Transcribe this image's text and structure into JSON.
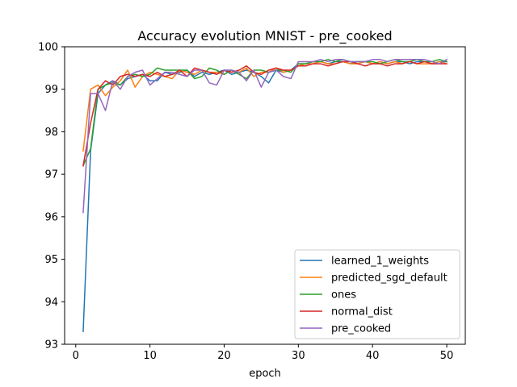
{
  "chart_data": {
    "type": "line",
    "title": "Accuracy evolution MNIST - pre_cooked",
    "xlabel": "epoch",
    "ylabel": "",
    "xlim": [
      -1.5,
      52.5
    ],
    "ylim": [
      93,
      100
    ],
    "xticks": [
      0,
      10,
      20,
      30,
      40,
      50
    ],
    "yticks": [
      93,
      94,
      95,
      96,
      97,
      98,
      99,
      100
    ],
    "grid": false,
    "legend_position": "lower-right",
    "series": [
      {
        "name": "learned_1_weights",
        "color": "#1f77b4",
        "x": [
          1,
          2,
          3,
          4,
          5,
          6,
          7,
          8,
          9,
          10,
          11,
          12,
          13,
          14,
          15,
          16,
          17,
          18,
          19,
          20,
          21,
          22,
          23,
          24,
          25,
          26,
          27,
          28,
          29,
          30,
          31,
          32,
          33,
          34,
          35,
          36,
          37,
          38,
          39,
          40,
          41,
          42,
          43,
          44,
          45,
          46,
          47,
          48,
          49,
          50
        ],
        "values": [
          93.3,
          97.55,
          98.9,
          99.1,
          99.2,
          99.1,
          99.25,
          99.3,
          99.35,
          99.2,
          99.2,
          99.4,
          99.35,
          99.4,
          99.45,
          99.3,
          99.4,
          99.35,
          99.4,
          99.45,
          99.35,
          99.4,
          99.45,
          99.4,
          99.3,
          99.15,
          99.45,
          99.4,
          99.45,
          99.6,
          99.6,
          99.65,
          99.65,
          99.6,
          99.65,
          99.65,
          99.6,
          99.65,
          99.65,
          99.6,
          99.65,
          99.6,
          99.65,
          99.65,
          99.6,
          99.65,
          99.65,
          99.6,
          99.65,
          99.65
        ]
      },
      {
        "name": "predicted_sgd_default",
        "color": "#ff7f0e",
        "x": [
          1,
          2,
          3,
          4,
          5,
          6,
          7,
          8,
          9,
          10,
          11,
          12,
          13,
          14,
          15,
          16,
          17,
          18,
          19,
          20,
          21,
          22,
          23,
          24,
          25,
          26,
          27,
          28,
          29,
          30,
          31,
          32,
          33,
          34,
          35,
          36,
          37,
          38,
          39,
          40,
          41,
          42,
          43,
          44,
          45,
          46,
          47,
          48,
          49,
          50
        ],
        "values": [
          97.55,
          99.0,
          99.1,
          98.85,
          99.05,
          99.2,
          99.45,
          99.05,
          99.3,
          99.4,
          99.35,
          99.3,
          99.25,
          99.45,
          99.4,
          99.35,
          99.45,
          99.4,
          99.4,
          99.35,
          99.45,
          99.4,
          99.5,
          99.3,
          99.4,
          99.4,
          99.5,
          99.4,
          99.45,
          99.55,
          99.6,
          99.6,
          99.65,
          99.6,
          99.6,
          99.65,
          99.6,
          99.6,
          99.65,
          99.6,
          99.65,
          99.6,
          99.65,
          99.6,
          99.65,
          99.6,
          99.6,
          99.6,
          99.65,
          99.6
        ]
      },
      {
        "name": "ones",
        "color": "#2ca02c",
        "x": [
          1,
          2,
          3,
          4,
          5,
          6,
          7,
          8,
          9,
          10,
          11,
          12,
          13,
          14,
          15,
          16,
          17,
          18,
          19,
          20,
          21,
          22,
          23,
          24,
          25,
          26,
          27,
          28,
          29,
          30,
          31,
          32,
          33,
          34,
          35,
          36,
          37,
          38,
          39,
          40,
          41,
          42,
          43,
          44,
          45,
          46,
          47,
          48,
          49,
          50
        ],
        "values": [
          97.2,
          97.6,
          99.0,
          99.1,
          99.15,
          99.1,
          99.3,
          99.35,
          99.3,
          99.35,
          99.5,
          99.45,
          99.45,
          99.45,
          99.45,
          99.25,
          99.3,
          99.5,
          99.45,
          99.35,
          99.45,
          99.35,
          99.25,
          99.45,
          99.45,
          99.4,
          99.45,
          99.45,
          99.4,
          99.6,
          99.6,
          99.65,
          99.65,
          99.7,
          99.65,
          99.7,
          99.65,
          99.65,
          99.65,
          99.65,
          99.6,
          99.65,
          99.7,
          99.65,
          99.65,
          99.7,
          99.65,
          99.65,
          99.7,
          99.65
        ]
      },
      {
        "name": "normal_dist",
        "color": "#d62728",
        "x": [
          1,
          2,
          3,
          4,
          5,
          6,
          7,
          8,
          9,
          10,
          11,
          12,
          13,
          14,
          15,
          16,
          17,
          18,
          19,
          20,
          21,
          22,
          23,
          24,
          25,
          26,
          27,
          28,
          29,
          30,
          31,
          32,
          33,
          34,
          35,
          36,
          37,
          38,
          39,
          40,
          41,
          42,
          43,
          44,
          45,
          46,
          47,
          48,
          49,
          50
        ],
        "values": [
          97.2,
          98.2,
          99.0,
          99.2,
          99.1,
          99.3,
          99.35,
          99.3,
          99.35,
          99.3,
          99.4,
          99.3,
          99.35,
          99.45,
          99.3,
          99.5,
          99.45,
          99.4,
          99.35,
          99.45,
          99.4,
          99.45,
          99.55,
          99.4,
          99.35,
          99.45,
          99.5,
          99.45,
          99.45,
          99.55,
          99.55,
          99.6,
          99.6,
          99.55,
          99.6,
          99.65,
          99.65,
          99.6,
          99.55,
          99.6,
          99.6,
          99.55,
          99.6,
          99.6,
          99.65,
          99.6,
          99.65,
          99.6,
          99.6,
          99.6
        ]
      },
      {
        "name": "pre_cooked",
        "color": "#9467bd",
        "x": [
          1,
          2,
          3,
          4,
          5,
          6,
          7,
          8,
          9,
          10,
          11,
          12,
          13,
          14,
          15,
          16,
          17,
          18,
          19,
          20,
          21,
          22,
          23,
          24,
          25,
          26,
          27,
          28,
          29,
          30,
          31,
          32,
          33,
          34,
          35,
          36,
          37,
          38,
          39,
          40,
          41,
          42,
          43,
          44,
          45,
          46,
          47,
          48,
          49,
          50
        ],
        "values": [
          96.1,
          98.9,
          98.9,
          98.5,
          99.2,
          99.0,
          99.3,
          99.4,
          99.45,
          99.1,
          99.25,
          99.4,
          99.4,
          99.35,
          99.3,
          99.45,
          99.45,
          99.15,
          99.1,
          99.45,
          99.45,
          99.4,
          99.2,
          99.45,
          99.05,
          99.4,
          99.45,
          99.3,
          99.25,
          99.65,
          99.65,
          99.65,
          99.7,
          99.65,
          99.7,
          99.7,
          99.65,
          99.65,
          99.65,
          99.7,
          99.7,
          99.65,
          99.7,
          99.7,
          99.7,
          99.7,
          99.7,
          99.65,
          99.6,
          99.7
        ]
      }
    ]
  }
}
